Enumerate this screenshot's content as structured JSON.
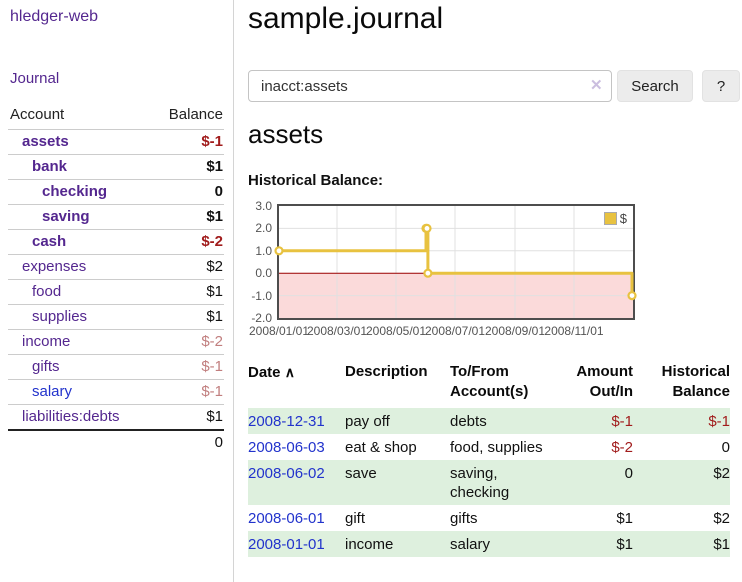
{
  "sidebar": {
    "app_title": "hledger-web",
    "journal_link": "Journal",
    "accounts": {
      "header": {
        "account": "Account",
        "balance": "Balance"
      },
      "rows": [
        {
          "name": "assets",
          "balance": "$-1"
        },
        {
          "name": "bank",
          "balance": "$1"
        },
        {
          "name": "checking",
          "balance": "0"
        },
        {
          "name": "saving",
          "balance": "$1"
        },
        {
          "name": "cash",
          "balance": "$-2"
        },
        {
          "name": "expenses",
          "balance": "$2"
        },
        {
          "name": "food",
          "balance": "$1"
        },
        {
          "name": "supplies",
          "balance": "$1"
        },
        {
          "name": "income",
          "balance": "$-2"
        },
        {
          "name": "gifts",
          "balance": "$-1"
        },
        {
          "name": "salary",
          "balance": "$-1"
        },
        {
          "name": "liabilities:debts",
          "balance": "$1"
        }
      ],
      "total": "0"
    }
  },
  "main": {
    "title": "sample.journal",
    "search": {
      "value": "inacct:assets",
      "clear_icon": "✕",
      "search_button": "Search",
      "help_button": "?"
    },
    "account_heading": "assets",
    "chart_title": "Historical Balance:"
  },
  "chart_data": {
    "type": "line",
    "step": true,
    "title": "Historical Balance:",
    "series": [
      {
        "name": "$",
        "color": "#e8c240",
        "points": [
          [
            "2008-01-01",
            1.0
          ],
          [
            "2008-06-01",
            2.0
          ],
          [
            "2008-06-02",
            2.0
          ],
          [
            "2008-06-03",
            0.0
          ],
          [
            "2008-12-31",
            -1.0
          ]
        ]
      }
    ],
    "xlim": [
      "2008-01-01",
      "2008-12-31"
    ],
    "ylim": [
      -2,
      3
    ],
    "y_ticks": [
      "3.0",
      "2.0",
      "1.0",
      "0.0",
      "-1.0",
      "-2.0"
    ],
    "x_ticks": [
      "2008/01/01",
      "2008/03/01",
      "2008/05/01",
      "2008/07/01",
      "2008/09/01",
      "2008/11/01"
    ],
    "legend_position": "top-right",
    "grid": true,
    "grid_color": "#e0e0e0",
    "negative_region_color": "#fbdada",
    "zero_line_color": "#990000"
  },
  "register": {
    "headers": {
      "date": "Date",
      "sort_icon": "∧",
      "description": "Description",
      "accounts": "To/From Account(s)",
      "amount": "Amount Out/In",
      "balance": "Historical Balance"
    },
    "rows": [
      {
        "date": "2008-12-31",
        "description": "pay off",
        "accounts": "debts",
        "amount": "$-1",
        "balance": "$-1"
      },
      {
        "date": "2008-06-03",
        "description": "eat & shop",
        "accounts": "food, supplies",
        "amount": "$-2",
        "balance": "0"
      },
      {
        "date": "2008-06-02",
        "description": "save",
        "accounts": "saving, checking",
        "amount": "0",
        "balance": "$2"
      },
      {
        "date": "2008-06-01",
        "description": "gift",
        "accounts": "gifts",
        "amount": "$1",
        "balance": "$2"
      },
      {
        "date": "2008-01-01",
        "description": "income",
        "accounts": "salary",
        "amount": "$1",
        "balance": "$1"
      }
    ]
  }
}
